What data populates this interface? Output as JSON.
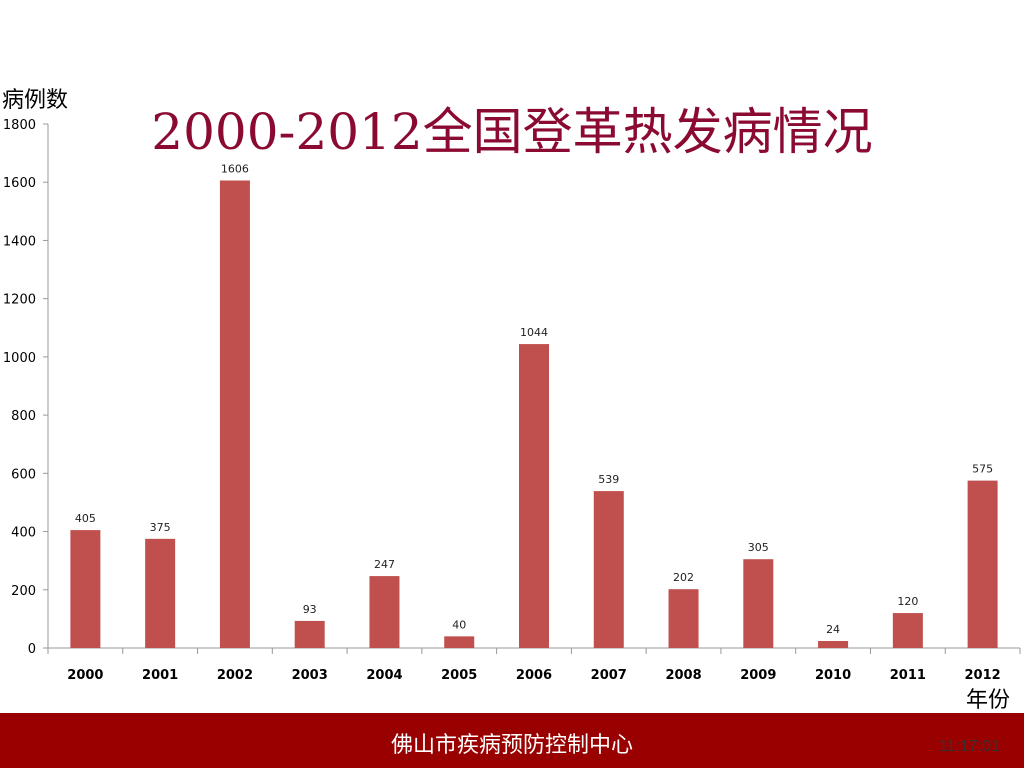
{
  "slide": {
    "title": "2000-2012全国登革热发病情况",
    "footer_text": "佛山市疾病预防控制中心",
    "time": "11:17:01",
    "colors": {
      "title": "#8b0a32",
      "bar": "#c0504d",
      "footer": "#990000"
    }
  },
  "chart_data": {
    "type": "bar",
    "title": "2000-2012全国登革热发病情况",
    "xlabel": "年份",
    "ylabel": "病例数",
    "categories": [
      "2000",
      "2001",
      "2002",
      "2003",
      "2004",
      "2005",
      "2006",
      "2007",
      "2008",
      "2009",
      "2010",
      "2011",
      "2012"
    ],
    "values": [
      405,
      375,
      1606,
      93,
      247,
      40,
      1044,
      539,
      202,
      305,
      24,
      120,
      575
    ],
    "ylim": [
      0,
      1800
    ],
    "yticks": [
      0,
      200,
      400,
      600,
      800,
      1000,
      1200,
      1400,
      1600,
      1800
    ],
    "data_labels": true,
    "grid": false,
    "legend": "none"
  }
}
